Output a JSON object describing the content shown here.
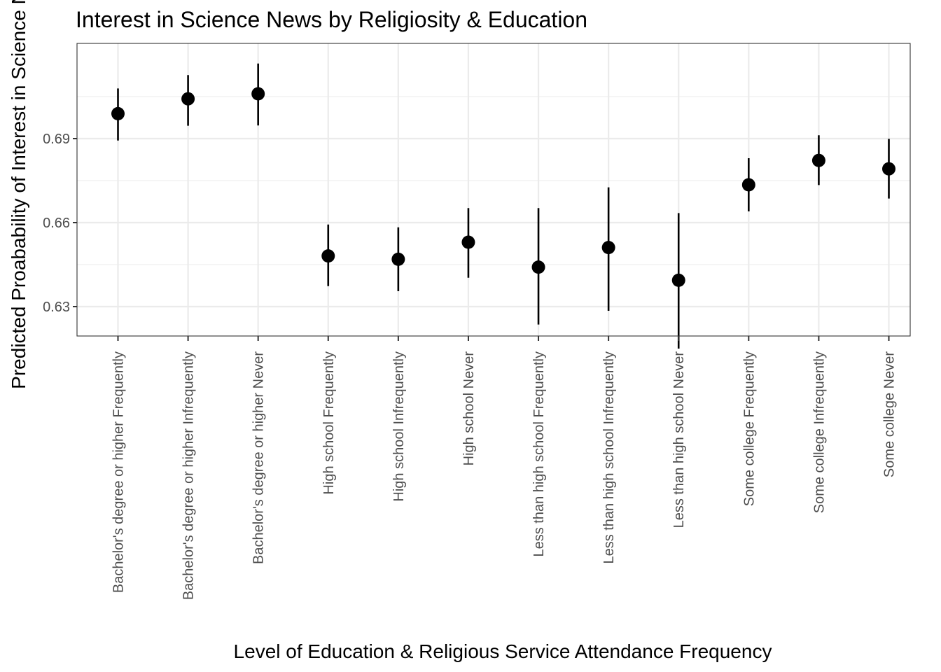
{
  "chart_data": {
    "type": "scatter",
    "title": "Interest in Science News by Religiosity & Education",
    "xlabel": "Level of Education & Religious Service Attendance Frequency",
    "ylabel": "Predicted Proabability of Interest in Science N",
    "ylim": [
      0.6195,
      0.724
    ],
    "yticks": [
      0.63,
      0.66,
      0.69
    ],
    "ytick_labels": [
      "0.63",
      "0.66",
      "0.69"
    ],
    "grid": true,
    "categories": [
      "Bachelor's degree or higher Frequently",
      "Bachelor's degree or higher Infrequently",
      "Bachelor's degree or higher Never",
      "High school Frequently",
      "High school Infrequently",
      "High school Never",
      "Less than high school Frequently",
      "Less than high school Infrequently",
      "Less than high school Never",
      "Some college Frequently",
      "Some college Infrequently",
      "Some college Never"
    ],
    "series": [
      {
        "values": [
          0.6989,
          0.7042,
          0.706,
          0.6481,
          0.6469,
          0.653,
          0.6441,
          0.6511,
          0.6394,
          0.6735,
          0.6822,
          0.6792
        ],
        "lower": [
          0.6893,
          0.6946,
          0.6947,
          0.6373,
          0.6355,
          0.6403,
          0.6236,
          0.6285,
          0.615,
          0.664,
          0.6734,
          0.6686
        ],
        "upper": [
          0.7079,
          0.7127,
          0.7168,
          0.6593,
          0.6583,
          0.6652,
          0.6652,
          0.6726,
          0.6634,
          0.683,
          0.6912,
          0.6899
        ]
      }
    ]
  }
}
